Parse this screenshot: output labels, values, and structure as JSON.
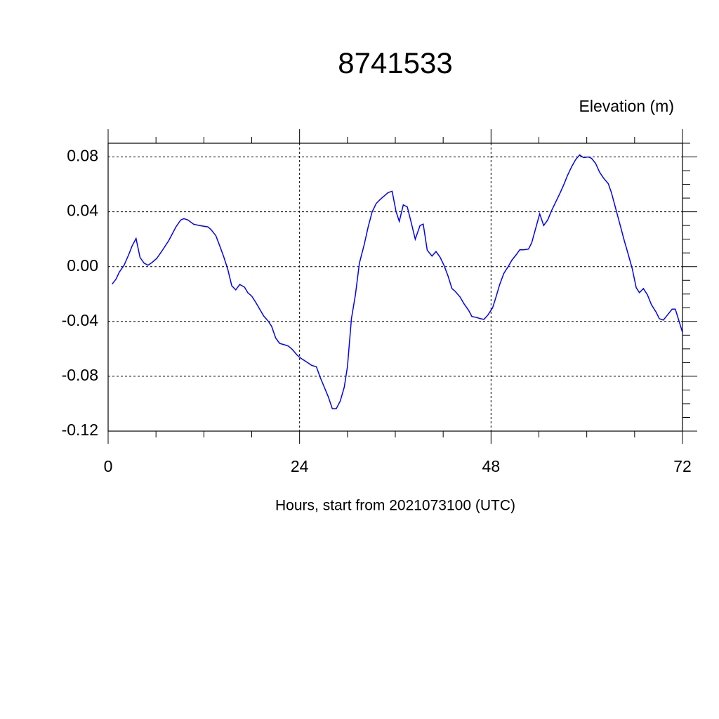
{
  "chart_data": {
    "type": "line",
    "title": "8741533",
    "ylabel": "Elevation (m)",
    "xlabel": "Hours, start from 2021073100 (UTC)",
    "x": [
      0.5,
      1.0,
      1.4,
      2.0,
      2.6,
      3.0,
      3.5,
      4.0,
      4.5,
      5.0,
      5.5,
      6.1,
      6.7,
      7.6,
      8.5,
      9.1,
      9.5,
      10.0,
      10.7,
      11.4,
      12.5,
      12.9,
      13.5,
      14.0,
      14.5,
      15.0,
      15.5,
      16.0,
      16.5,
      17.1,
      17.5,
      18.0,
      18.5,
      19.0,
      19.5,
      20.1,
      20.5,
      21.0,
      21.5,
      22.1,
      22.6,
      23.1,
      23.7,
      24.2,
      25.0,
      25.5,
      26.1,
      26.6,
      27.1,
      27.6,
      28.1,
      28.6,
      29.1,
      29.6,
      30.0,
      30.5,
      31.0,
      31.5,
      32.1,
      32.6,
      33.1,
      33.6,
      34.1,
      34.7,
      35.1,
      35.6,
      36.1,
      36.5,
      37.0,
      37.5,
      38.0,
      38.5,
      39.1,
      39.5,
      40.0,
      40.6,
      41.1,
      41.6,
      42.1,
      42.6,
      43.1,
      43.5,
      44.1,
      44.6,
      45.2,
      45.6,
      46.1,
      46.7,
      47.1,
      47.6,
      48.2,
      48.6,
      49.1,
      49.6,
      50.2,
      50.6,
      51.2,
      51.6,
      52.1,
      52.7,
      53.1,
      53.6,
      54.1,
      54.6,
      55.1,
      55.6,
      56.1,
      56.6,
      57.1,
      57.6,
      58.1,
      58.6,
      59.1,
      59.6,
      60.2,
      60.6,
      61.1,
      61.6,
      62.1,
      62.7,
      63.1,
      63.6,
      64.2,
      64.7,
      65.1,
      65.7,
      66.2,
      66.6,
      67.1,
      67.6,
      68.1,
      68.7,
      69.1,
      69.6,
      70.1,
      70.7,
      71.1,
      71.5,
      72.0
    ],
    "series": [
      {
        "name": "Elevation",
        "color": "#0000ff",
        "values": [
          -0.0128,
          -0.009,
          -0.004,
          0.001,
          0.009,
          0.015,
          0.0205,
          0.0067,
          0.0026,
          0.001,
          0.003,
          0.006,
          0.011,
          0.019,
          0.029,
          0.034,
          0.035,
          0.034,
          0.031,
          0.03,
          0.029,
          0.027,
          0.0226,
          0.015,
          0.007,
          -0.002,
          -0.014,
          -0.017,
          -0.013,
          -0.015,
          -0.019,
          -0.0215,
          -0.026,
          -0.031,
          -0.036,
          -0.04,
          -0.0436,
          -0.052,
          -0.056,
          -0.057,
          -0.058,
          -0.0605,
          -0.0646,
          -0.067,
          -0.07,
          -0.072,
          -0.073,
          -0.081,
          -0.088,
          -0.095,
          -0.1036,
          -0.1036,
          -0.098,
          -0.088,
          -0.073,
          -0.038,
          -0.0205,
          0.0026,
          0.016,
          0.029,
          0.04,
          0.046,
          0.049,
          0.052,
          0.054,
          0.055,
          0.04,
          0.033,
          0.045,
          0.0436,
          0.032,
          0.02,
          0.03,
          0.031,
          0.012,
          0.0077,
          0.011,
          0.007,
          0.001,
          -0.0067,
          -0.016,
          -0.018,
          -0.022,
          -0.027,
          -0.032,
          -0.0364,
          -0.037,
          -0.038,
          -0.0385,
          -0.0354,
          -0.03,
          -0.0226,
          -0.0128,
          -0.005,
          0.0005,
          0.0046,
          0.009,
          0.0123,
          0.0123,
          0.0128,
          0.0174,
          0.028,
          0.0385,
          0.03,
          0.034,
          0.041,
          0.047,
          0.053,
          0.0595,
          0.0667,
          0.0728,
          0.078,
          0.0815,
          0.0795,
          0.08,
          0.079,
          0.0754,
          0.069,
          0.0646,
          0.0605,
          0.0538,
          0.043,
          0.03,
          0.019,
          0.011,
          -0.0015,
          -0.0154,
          -0.019,
          -0.016,
          -0.0205,
          -0.0277,
          -0.0333,
          -0.038,
          -0.039,
          -0.0354,
          -0.031,
          -0.031,
          -0.0385,
          -0.048
        ]
      }
    ],
    "xlim": [
      0,
      72
    ],
    "xticks": [
      0,
      24,
      48,
      72
    ],
    "x_minor_ticks": [
      6,
      12,
      18,
      30,
      36,
      42,
      54,
      60,
      66
    ],
    "ylim": [
      -0.12,
      0.09
    ],
    "yticks": [
      0.08,
      0.04,
      {
        "value": 0,
        "label": "0.00"
      },
      -0.04,
      -0.08,
      -0.12
    ],
    "y_minor_ticks": [
      0.09,
      0.07,
      0.06,
      0.05,
      0.03,
      0.02,
      0.01,
      -0.01,
      -0.02,
      -0.03,
      -0.05,
      -0.06,
      -0.07,
      -0.09,
      -0.1,
      -0.11
    ],
    "grid": true
  }
}
